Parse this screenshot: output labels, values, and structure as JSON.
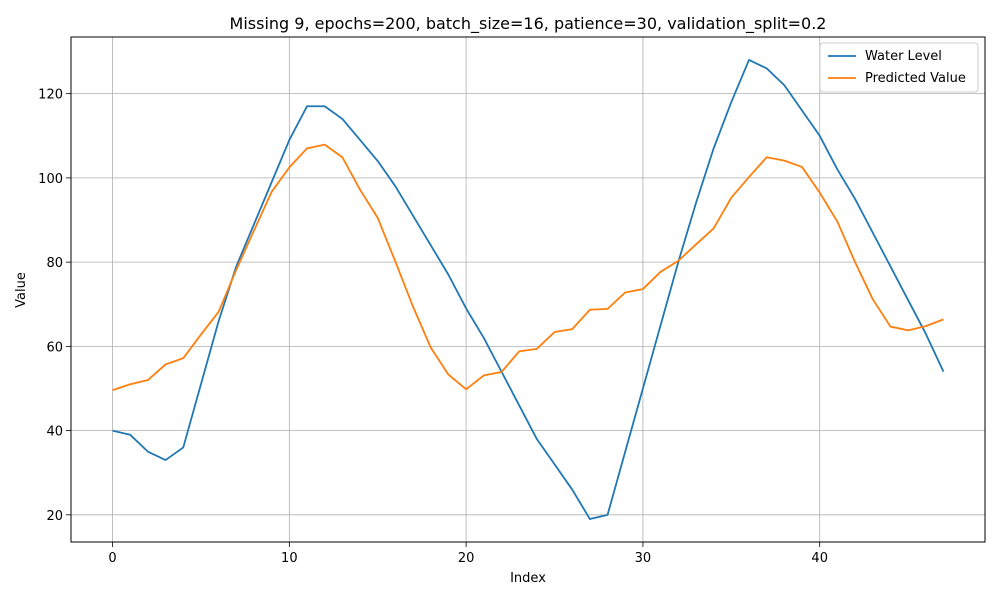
{
  "chart_data": {
    "type": "line",
    "title": "Missing 9, epochs=200, batch_size=16, patience=30, validation_split=0.2",
    "xlabel": "Index",
    "ylabel": "Value",
    "xlim": [
      -2.35,
      49.35
    ],
    "ylim": [
      13.55,
      133.45
    ],
    "xticks": [
      0,
      10,
      20,
      30,
      40
    ],
    "yticks": [
      20,
      40,
      60,
      80,
      100,
      120
    ],
    "grid": true,
    "legend_position": "top-right",
    "series": [
      {
        "name": "Water Level",
        "color": "#1f77b4",
        "x": [
          0,
          1,
          2,
          3,
          4,
          5,
          6,
          7,
          8,
          9,
          10,
          11,
          12,
          13,
          14,
          15,
          16,
          17,
          18,
          19,
          20,
          21,
          22,
          23,
          24,
          25,
          26,
          27,
          28,
          29,
          30,
          31,
          32,
          33,
          34,
          35,
          36,
          37,
          38,
          39,
          40,
          41,
          42,
          43,
          44,
          45,
          46,
          47
        ],
        "values": [
          40,
          39,
          35,
          33,
          36,
          51,
          66,
          79,
          89,
          99,
          109,
          117,
          117,
          114,
          109,
          104,
          98,
          91,
          84,
          77,
          69,
          62,
          54,
          46,
          38,
          32,
          26,
          19,
          20,
          35,
          50,
          65,
          80,
          94,
          107,
          118,
          128,
          126,
          122,
          116,
          110,
          102,
          95,
          87,
          79,
          71,
          63,
          54
        ]
      },
      {
        "name": "Predicted Value",
        "color": "#ff7f0e",
        "x": [
          0,
          1,
          2,
          3,
          4,
          5,
          6,
          7,
          8,
          9,
          10,
          11,
          12,
          13,
          14,
          15,
          16,
          17,
          18,
          19,
          20,
          21,
          22,
          23,
          24,
          25,
          26,
          27,
          28,
          29,
          30,
          31,
          32,
          33,
          34,
          35,
          36,
          37,
          38,
          39,
          40,
          41,
          42,
          43,
          44,
          45,
          46,
          47
        ],
        "values": [
          49.6,
          51,
          52,
          55.7,
          57.2,
          62.8,
          68.2,
          78.2,
          87.5,
          96.7,
          102.5,
          107,
          107.9,
          104.9,
          97.2,
          90.5,
          80.1,
          69.4,
          59.7,
          53.3,
          49.8,
          53.1,
          53.9,
          58.8,
          59.4,
          63.4,
          64.1,
          68.7,
          68.9,
          72.8,
          73.6,
          77.7,
          80.3,
          84.2,
          88,
          95.3,
          100.2,
          104.9,
          104.1,
          102.6,
          96.5,
          89.6,
          80,
          71.2,
          64.7,
          63.8,
          64.8,
          66.4
        ]
      }
    ]
  }
}
